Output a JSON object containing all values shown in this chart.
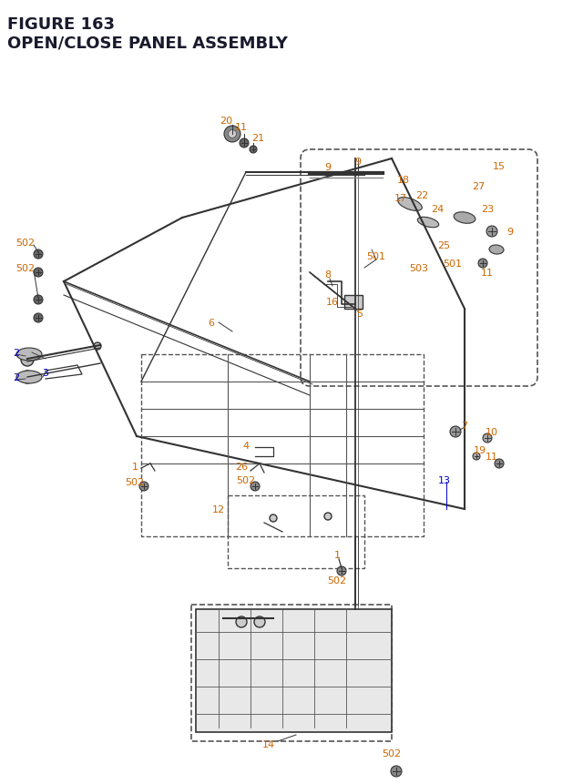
{
  "title_line1": "FIGURE 163",
  "title_line2": "OPEN/CLOSE PANEL ASSEMBLY",
  "title_color": "#1a1a2e",
  "title_fontsize": 13,
  "bg_color": "#ffffff",
  "label_color_orange": "#cc6600",
  "label_color_blue": "#0000cc",
  "label_color_black": "#000000",
  "label_color_cyan": "#007777",
  "fig_width": 6.4,
  "fig_height": 8.62
}
